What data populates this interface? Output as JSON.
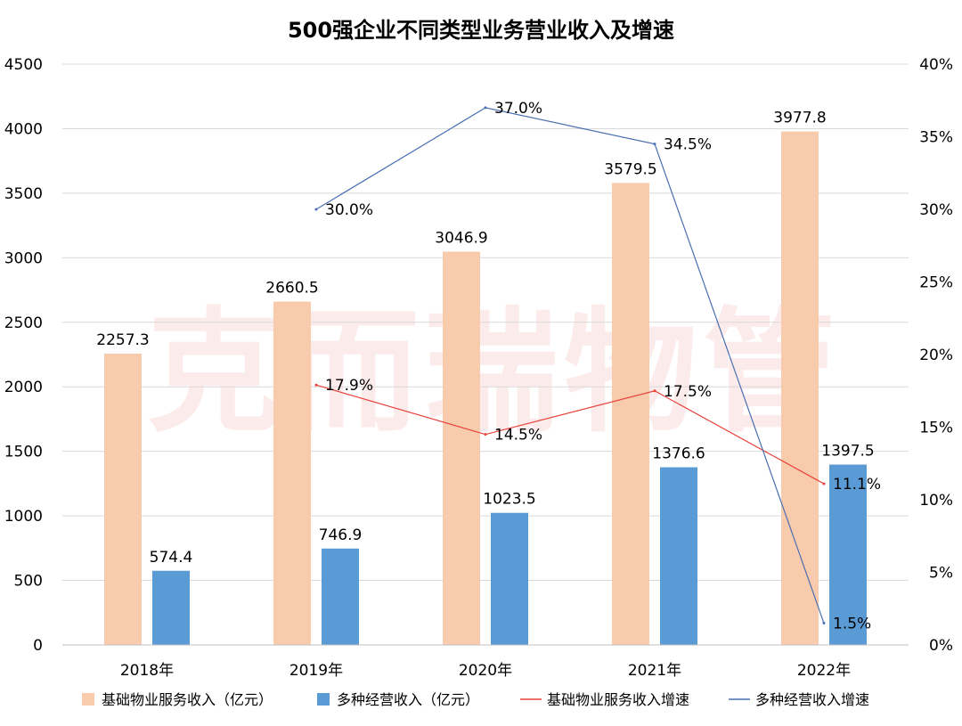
{
  "watermark": "克而瑞物管",
  "chart_data": {
    "type": "bar",
    "title": "500强企业不同类型业务营业收入及增速",
    "categories": [
      "2018年",
      "2019年",
      "2020年",
      "2021年",
      "2022年"
    ],
    "left_axis": {
      "min": 0,
      "max": 4500,
      "step": 500,
      "ticks": [
        "0",
        "500",
        "1000",
        "1500",
        "2000",
        "2500",
        "3000",
        "3500",
        "4000",
        "4500"
      ]
    },
    "right_axis": {
      "min": 0,
      "max": 0.4,
      "step": 0.05,
      "ticks": [
        "0%",
        "5%",
        "10%",
        "15%",
        "20%",
        "25%",
        "30%",
        "35%",
        "40%"
      ]
    },
    "grid": true,
    "legend_position": "bottom",
    "series": [
      {
        "name": "基础物业服务收入（亿元）",
        "type": "bar",
        "axis": "left",
        "color": "#f8cbad",
        "values": [
          2257.3,
          2660.5,
          3046.9,
          3579.5,
          3977.8
        ],
        "labels": [
          "2257.3",
          "2660.5",
          "3046.9",
          "3579.5",
          "3977.8"
        ]
      },
      {
        "name": "多种经营收入（亿元）",
        "type": "bar",
        "axis": "left",
        "color": "#5b9bd5",
        "values": [
          574.4,
          746.9,
          1023.5,
          1376.6,
          1397.5
        ],
        "labels": [
          "574.4",
          "746.9",
          "1023.5",
          "1376.6",
          "1397.5"
        ]
      },
      {
        "name": "基础物业服务收入增速",
        "type": "line",
        "axis": "right",
        "color": "#e8413a",
        "values": [
          null,
          0.179,
          0.145,
          0.175,
          0.111
        ],
        "labels": [
          null,
          "17.9%",
          "14.5%",
          "17.5%",
          "11.1%"
        ]
      },
      {
        "name": "多种经营收入增速",
        "type": "line",
        "axis": "right",
        "color": "#4a6fb0",
        "values": [
          null,
          0.3,
          0.37,
          0.345,
          0.015
        ],
        "labels": [
          null,
          "30.0%",
          "37.0%",
          "34.5%",
          "1.5%"
        ]
      }
    ]
  }
}
